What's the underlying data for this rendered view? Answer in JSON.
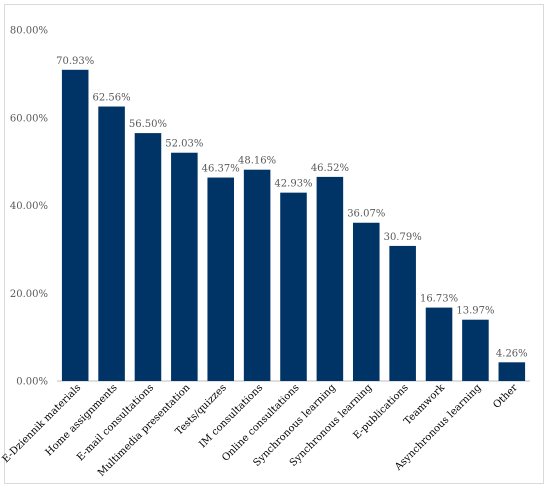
{
  "chart_data": {
    "type": "bar",
    "title": "",
    "xlabel": "",
    "ylabel": "",
    "categories": [
      "E-Dziennik materials",
      "Home assignments",
      "E-mail consultations",
      "Multimedia presentation",
      "Tests/quizzes",
      "IM consultations",
      "Online consultations",
      "Synchronous learning",
      "Synchronous learning",
      "E-publications",
      "Teamwork",
      "Asynchronous learning",
      "Other"
    ],
    "values": [
      70.93,
      62.56,
      56.5,
      52.03,
      46.37,
      48.16,
      42.93,
      46.52,
      36.07,
      30.79,
      16.73,
      13.97,
      4.26
    ],
    "value_labels": [
      "70.93%",
      "62.56%",
      "56.50%",
      "52.03%",
      "46.37%",
      "48.16%",
      "42.93%",
      "46.52%",
      "36.07%",
      "30.79%",
      "16.73%",
      "13.97%",
      "4.26%"
    ],
    "ylim": [
      0,
      80
    ],
    "yticks": [
      0,
      20,
      40,
      60,
      80
    ],
    "ytick_labels": [
      "0.00%",
      "20.00%",
      "40.00%",
      "60.00%",
      "80.00%"
    ],
    "grid": false,
    "legend": "none",
    "colors": {
      "bar": "#003366",
      "axis": "#bfbfbf"
    }
  }
}
